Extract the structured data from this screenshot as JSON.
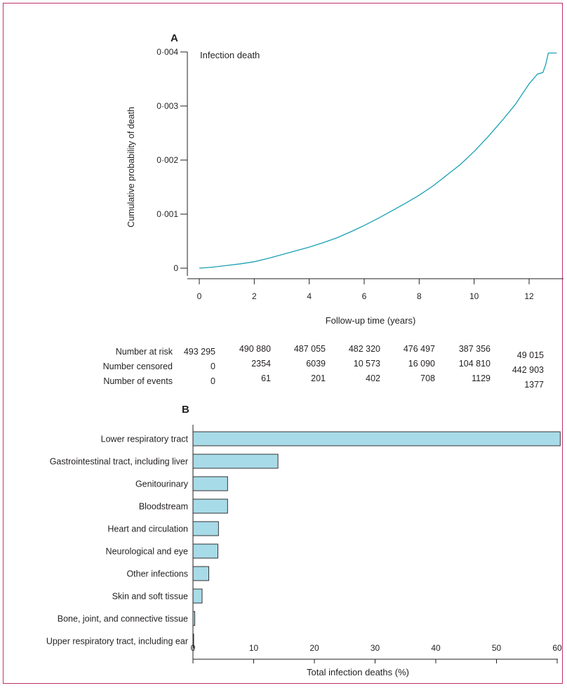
{
  "chart_data": [
    {
      "panel": "A",
      "type": "line",
      "annotation": "Infection death",
      "xlabel": "Follow-up time (years)",
      "ylabel": "Cumulative probability of death",
      "xlim": [
        0,
        13
      ],
      "ylim": [
        0,
        0.004
      ],
      "xticks": [
        "0",
        "2",
        "4",
        "6",
        "8",
        "10",
        "12"
      ],
      "yticks": [
        "0",
        "0·001",
        "0·002",
        "0·003",
        "0·004"
      ],
      "x": [
        0,
        0.5,
        1,
        1.5,
        2,
        2.5,
        3,
        3.5,
        4,
        4.5,
        5,
        5.5,
        6,
        6.5,
        7,
        7.5,
        8,
        8.5,
        9,
        9.5,
        10,
        10.5,
        11,
        11.5,
        12,
        12.3,
        12.5,
        12.6,
        12.7,
        13
      ],
      "y": [
        0,
        2e-05,
        5e-05,
        8e-05,
        0.00012,
        0.00018,
        0.00025,
        0.00032,
        0.00039,
        0.00047,
        0.00056,
        0.00067,
        0.00079,
        0.00092,
        0.00106,
        0.0012,
        0.00135,
        0.00152,
        0.00172,
        0.00192,
        0.00216,
        0.00243,
        0.00272,
        0.00303,
        0.00341,
        0.00359,
        0.00362,
        0.00376,
        0.00398,
        0.00398
      ],
      "risk_table": {
        "times": [
          "0",
          "2",
          "4",
          "6",
          "8",
          "10",
          "12"
        ],
        "rows": [
          {
            "label": "Number at risk",
            "values": [
              "493 295",
              "490 880",
              "487 055",
              "482 320",
              "476 497",
              "387 356",
              "49 015"
            ]
          },
          {
            "label": "Number censored",
            "values": [
              "0",
              "2354",
              "6039",
              "10 573",
              "16 090",
              "104 810",
              "442 903"
            ]
          },
          {
            "label": "Number of events",
            "values": [
              "0",
              "61",
              "201",
              "402",
              "708",
              "1129",
              "1377"
            ]
          }
        ]
      }
    },
    {
      "panel": "B",
      "type": "bar",
      "orientation": "horizontal",
      "xlabel": "Total infection deaths (%)",
      "xlim": [
        0,
        60
      ],
      "xticks": [
        "0",
        "10",
        "20",
        "30",
        "40",
        "50",
        "60"
      ],
      "categories": [
        "Lower respiratory tract",
        "Gastrointestinal tract, including liver",
        "Genitourinary",
        "Bloodstream",
        "Heart and circulation",
        "Neurological and eye",
        "Other infections",
        "Skin and soft tissue",
        "Bone, joint, and connective tissue",
        "Upper respiratory tract, including ear"
      ],
      "values": [
        60.5,
        14.0,
        5.7,
        5.7,
        4.2,
        4.1,
        2.6,
        1.5,
        0.3,
        0.1
      ]
    }
  ]
}
